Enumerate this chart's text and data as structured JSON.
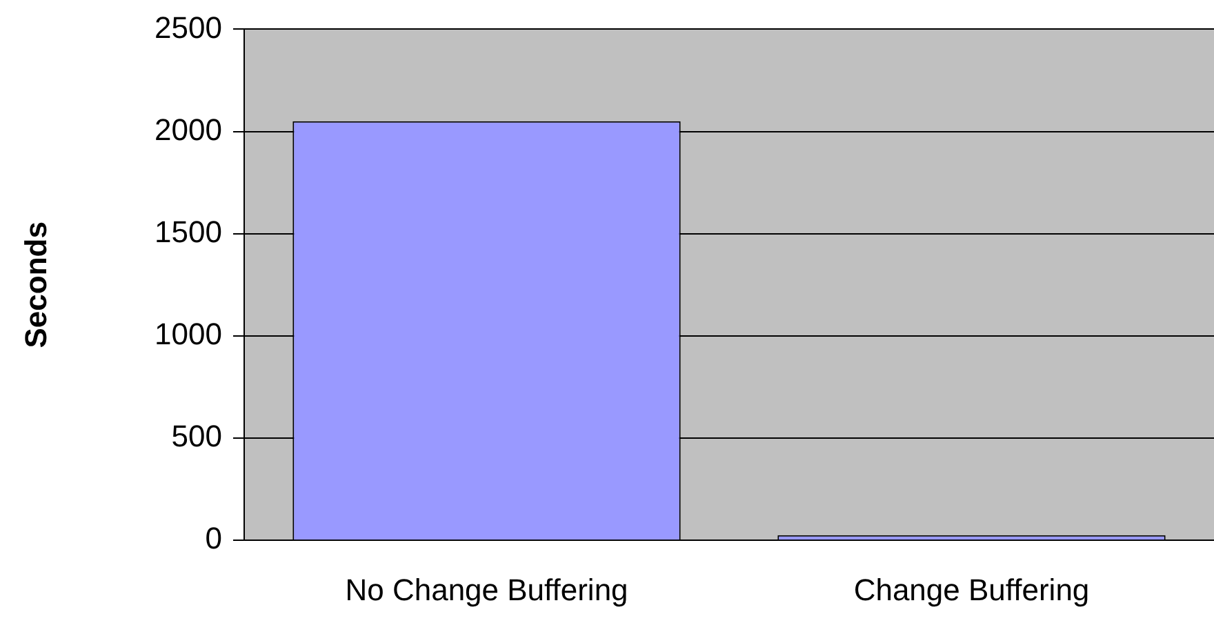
{
  "chart_data": {
    "type": "bar",
    "ylabel": "Seconds",
    "categories": [
      "No Change Buffering",
      "Change Buffering"
    ],
    "series": [
      {
        "color": "#9999ff",
        "values": [
          2050,
          25
        ]
      }
    ],
    "ylim": [
      0,
      2500
    ],
    "yticks": [
      0,
      500,
      1000,
      1500,
      2000,
      2500
    ],
    "grid": "y",
    "legend": false
  }
}
